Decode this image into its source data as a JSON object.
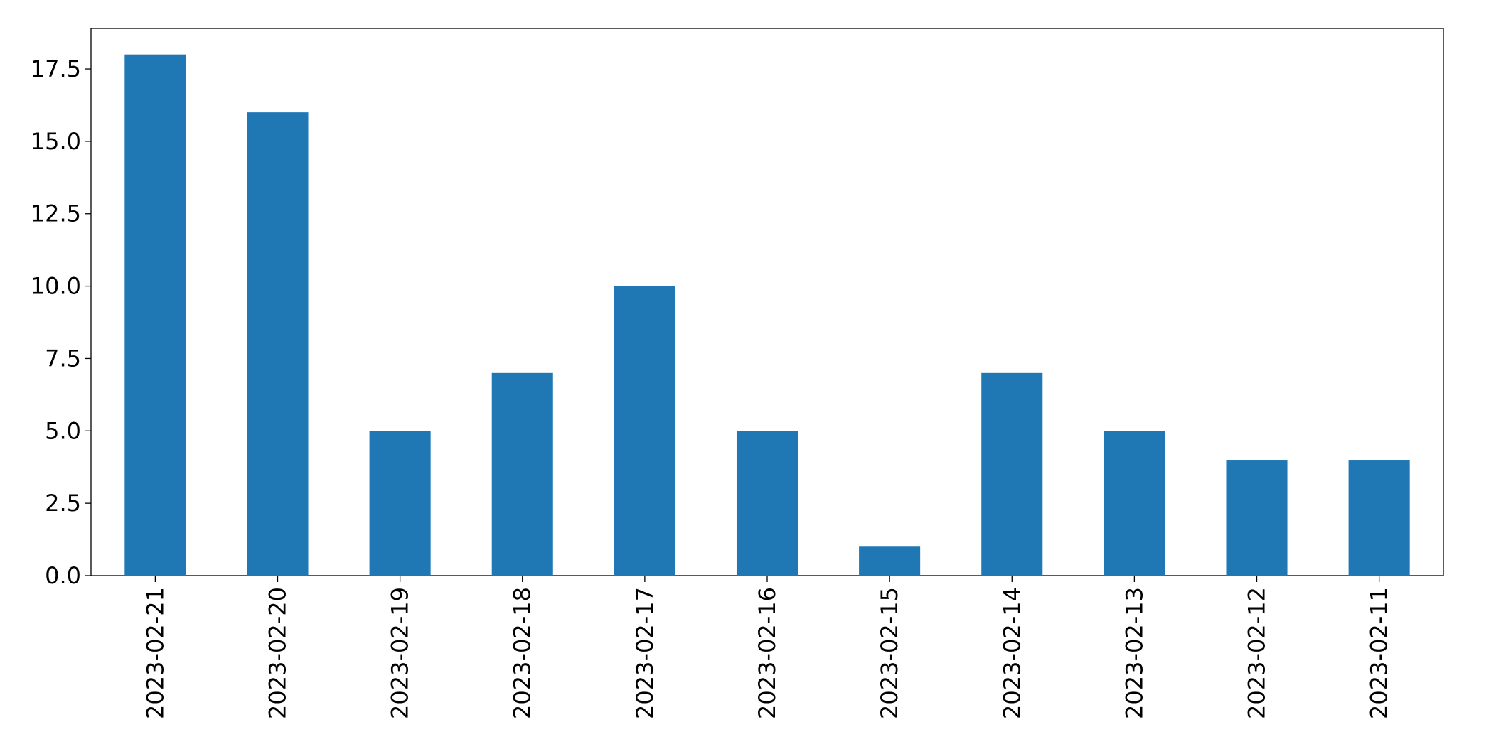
{
  "chart_data": {
    "type": "bar",
    "title": "",
    "xlabel": "",
    "ylabel": "",
    "categories": [
      "2023-02-21",
      "2023-02-20",
      "2023-02-19",
      "2023-02-18",
      "2023-02-17",
      "2023-02-16",
      "2023-02-15",
      "2023-02-14",
      "2023-02-13",
      "2023-02-12",
      "2023-02-11"
    ],
    "values": [
      18,
      16,
      5,
      7,
      10,
      5,
      1,
      7,
      5,
      4,
      4
    ],
    "ylim": [
      0,
      18.9
    ],
    "yticks": [
      0,
      2.5,
      5,
      7.5,
      10,
      12.5,
      15,
      17.5
    ],
    "ytick_labels": [
      "0.0",
      "2.5",
      "5.0",
      "7.5",
      "10.0",
      "12.5",
      "15.0",
      "17.5"
    ],
    "grid": false,
    "legend": "none",
    "bar_color": "#1f77b4"
  }
}
